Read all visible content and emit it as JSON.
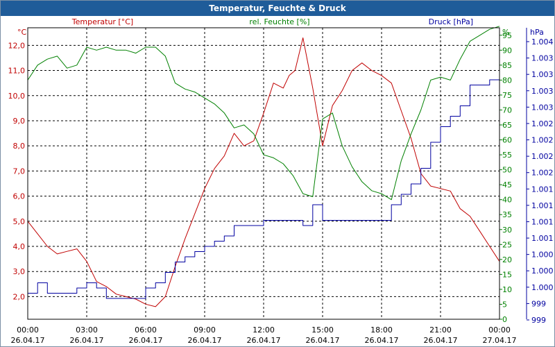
{
  "window": {
    "title": "Temperatur, Feuchte & Druck"
  },
  "colors": {
    "temperature": "#c00000",
    "humidity": "#008000",
    "pressure": "#0000a0",
    "grid": "#000000"
  },
  "chart_data": {
    "type": "line",
    "title": "Temperatur, Feuchte & Druck",
    "grid": true,
    "x_ticks": [
      {
        "time": "00:00",
        "date": "26.04.17",
        "h": 0
      },
      {
        "time": "03:00",
        "date": "26.04.17",
        "h": 3
      },
      {
        "time": "06:00",
        "date": "26.04.17",
        "h": 6
      },
      {
        "time": "09:00",
        "date": "26.04.17",
        "h": 9
      },
      {
        "time": "12:00",
        "date": "26.04.17",
        "h": 12
      },
      {
        "time": "15:00",
        "date": "26.04.17",
        "h": 15
      },
      {
        "time": "18:00",
        "date": "26.04.17",
        "h": 18
      },
      {
        "time": "21:00",
        "date": "26.04.17",
        "h": 21
      },
      {
        "time": "00:00",
        "date": "27.04.17",
        "h": 24
      }
    ],
    "axes": {
      "temperature": {
        "unit_label": "°C",
        "range": [
          1.1,
          12.7
        ],
        "ticks": [
          "2,0",
          "3,0",
          "4,0",
          "5,0",
          "6,0",
          "7,0",
          "8,0",
          "9,0",
          "10,0",
          "11,0",
          "12,0"
        ],
        "tick_values": [
          2,
          3,
          4,
          5,
          6,
          7,
          8,
          9,
          10,
          11,
          12
        ]
      },
      "humidity": {
        "unit_label": "%",
        "range": [
          0,
          97.5
        ],
        "ticks": [
          "0",
          "5",
          "10",
          "15",
          "20",
          "25",
          "30",
          "35",
          "40",
          "45",
          "50",
          "55",
          "60",
          "65",
          "70",
          "75",
          "80",
          "85",
          "90",
          "95"
        ],
        "tick_values": [
          0,
          5,
          10,
          15,
          20,
          25,
          30,
          35,
          40,
          45,
          50,
          55,
          60,
          65,
          70,
          75,
          80,
          85,
          90,
          95
        ]
      },
      "pressure": {
        "unit_label": "hPa",
        "tick_labels": [
          "999",
          "999",
          "1.000",
          "1.000",
          "1.000",
          "1.001",
          "1.001",
          "1.001",
          "1.001",
          "1.002",
          "1.002",
          "1.002",
          "1.002",
          "1.003",
          "1.003",
          "1.003",
          "1.003",
          "1.004"
        ],
        "range": [
          998.7,
          1004.3
        ]
      }
    },
    "series": [
      {
        "name": "Temperatur [°C]",
        "axis": "temperature",
        "points": [
          [
            0,
            5.0
          ],
          [
            0.5,
            4.5
          ],
          [
            1,
            4.0
          ],
          [
            1.5,
            3.7
          ],
          [
            2,
            3.8
          ],
          [
            2.5,
            3.9
          ],
          [
            3,
            3.4
          ],
          [
            3.5,
            2.6
          ],
          [
            4,
            2.4
          ],
          [
            4.5,
            2.1
          ],
          [
            5,
            2.0
          ],
          [
            5.5,
            1.9
          ],
          [
            6,
            1.7
          ],
          [
            6.5,
            1.6
          ],
          [
            7,
            2.0
          ],
          [
            7.5,
            3.2
          ],
          [
            8,
            4.3
          ],
          [
            8.5,
            5.3
          ],
          [
            9,
            6.3
          ],
          [
            9.5,
            7.1
          ],
          [
            10,
            7.6
          ],
          [
            10.5,
            8.5
          ],
          [
            11,
            8.0
          ],
          [
            11.5,
            8.2
          ],
          [
            12,
            9.3
          ],
          [
            12.5,
            10.5
          ],
          [
            13,
            10.3
          ],
          [
            13.3,
            10.8
          ],
          [
            13.6,
            11.0
          ],
          [
            14,
            12.3
          ],
          [
            14.5,
            10.3
          ],
          [
            15,
            8.0
          ],
          [
            15.5,
            9.6
          ],
          [
            16,
            10.2
          ],
          [
            16.5,
            11.0
          ],
          [
            17,
            11.3
          ],
          [
            17.5,
            11.0
          ],
          [
            18,
            10.8
          ],
          [
            18.5,
            10.5
          ],
          [
            19,
            9.4
          ],
          [
            19.5,
            8.3
          ],
          [
            20,
            6.9
          ],
          [
            20.5,
            6.4
          ],
          [
            21,
            6.3
          ],
          [
            21.5,
            6.2
          ],
          [
            22,
            5.5
          ],
          [
            22.5,
            5.2
          ],
          [
            23,
            4.6
          ],
          [
            23.5,
            4.0
          ],
          [
            24,
            3.4
          ]
        ]
      },
      {
        "name": "rel. Feuchte [%]",
        "axis": "humidity",
        "points": [
          [
            0,
            80
          ],
          [
            0.5,
            85
          ],
          [
            1,
            87
          ],
          [
            1.5,
            88
          ],
          [
            2,
            84
          ],
          [
            2.5,
            85
          ],
          [
            3,
            91
          ],
          [
            3.5,
            90
          ],
          [
            4,
            91
          ],
          [
            4.5,
            90
          ],
          [
            5,
            90
          ],
          [
            5.5,
            89
          ],
          [
            6,
            91
          ],
          [
            6.5,
            91
          ],
          [
            7,
            88
          ],
          [
            7.5,
            79
          ],
          [
            8,
            77
          ],
          [
            8.5,
            76
          ],
          [
            9,
            74
          ],
          [
            9.5,
            72
          ],
          [
            10,
            69
          ],
          [
            10.5,
            64
          ],
          [
            11,
            65
          ],
          [
            11.5,
            62
          ],
          [
            12,
            55
          ],
          [
            12.5,
            54
          ],
          [
            13,
            52
          ],
          [
            13.5,
            48
          ],
          [
            14,
            42
          ],
          [
            14.5,
            41
          ],
          [
            15,
            67
          ],
          [
            15.5,
            69
          ],
          [
            16,
            58
          ],
          [
            16.5,
            51
          ],
          [
            17,
            46
          ],
          [
            17.5,
            43
          ],
          [
            18,
            42
          ],
          [
            18.5,
            40
          ],
          [
            19,
            53
          ],
          [
            19.5,
            62
          ],
          [
            20,
            70
          ],
          [
            20.5,
            80
          ],
          [
            21,
            81
          ],
          [
            21.5,
            80
          ],
          [
            22,
            87
          ],
          [
            22.5,
            93
          ],
          [
            23,
            95
          ],
          [
            23.5,
            97
          ],
          [
            24,
            98
          ]
        ]
      },
      {
        "name": "Druck [hPa]",
        "axis": "pressure",
        "points": [
          [
            0,
            999.2
          ],
          [
            0.5,
            999.4
          ],
          [
            1,
            999.2
          ],
          [
            1.5,
            999.2
          ],
          [
            2,
            999.2
          ],
          [
            2.5,
            999.3
          ],
          [
            3,
            999.4
          ],
          [
            3.5,
            999.3
          ],
          [
            4,
            999.1
          ],
          [
            4.5,
            999.1
          ],
          [
            5,
            999.1
          ],
          [
            5.5,
            999.1
          ],
          [
            6,
            999.3
          ],
          [
            6.5,
            999.4
          ],
          [
            7,
            999.6
          ],
          [
            7.5,
            999.8
          ],
          [
            8,
            999.9
          ],
          [
            8.5,
            1000.0
          ],
          [
            9,
            1000.1
          ],
          [
            9.5,
            1000.2
          ],
          [
            10,
            1000.3
          ],
          [
            10.5,
            1000.5
          ],
          [
            11,
            1000.5
          ],
          [
            11.5,
            1000.5
          ],
          [
            12,
            1000.6
          ],
          [
            12.5,
            1000.6
          ],
          [
            13,
            1000.6
          ],
          [
            13.5,
            1000.6
          ],
          [
            14,
            1000.5
          ],
          [
            14.5,
            1000.9
          ],
          [
            15,
            1000.6
          ],
          [
            15.5,
            1000.6
          ],
          [
            16,
            1000.6
          ],
          [
            16.5,
            1000.6
          ],
          [
            17,
            1000.6
          ],
          [
            17.5,
            1000.6
          ],
          [
            18,
            1000.6
          ],
          [
            18.5,
            1000.9
          ],
          [
            19,
            1001.1
          ],
          [
            19.5,
            1001.3
          ],
          [
            20,
            1001.6
          ],
          [
            20.5,
            1002.1
          ],
          [
            21,
            1002.4
          ],
          [
            21.5,
            1002.6
          ],
          [
            22,
            1002.8
          ],
          [
            22.5,
            1003.2
          ],
          [
            23,
            1003.2
          ],
          [
            23.5,
            1003.3
          ],
          [
            24,
            1003.3
          ]
        ]
      }
    ]
  }
}
